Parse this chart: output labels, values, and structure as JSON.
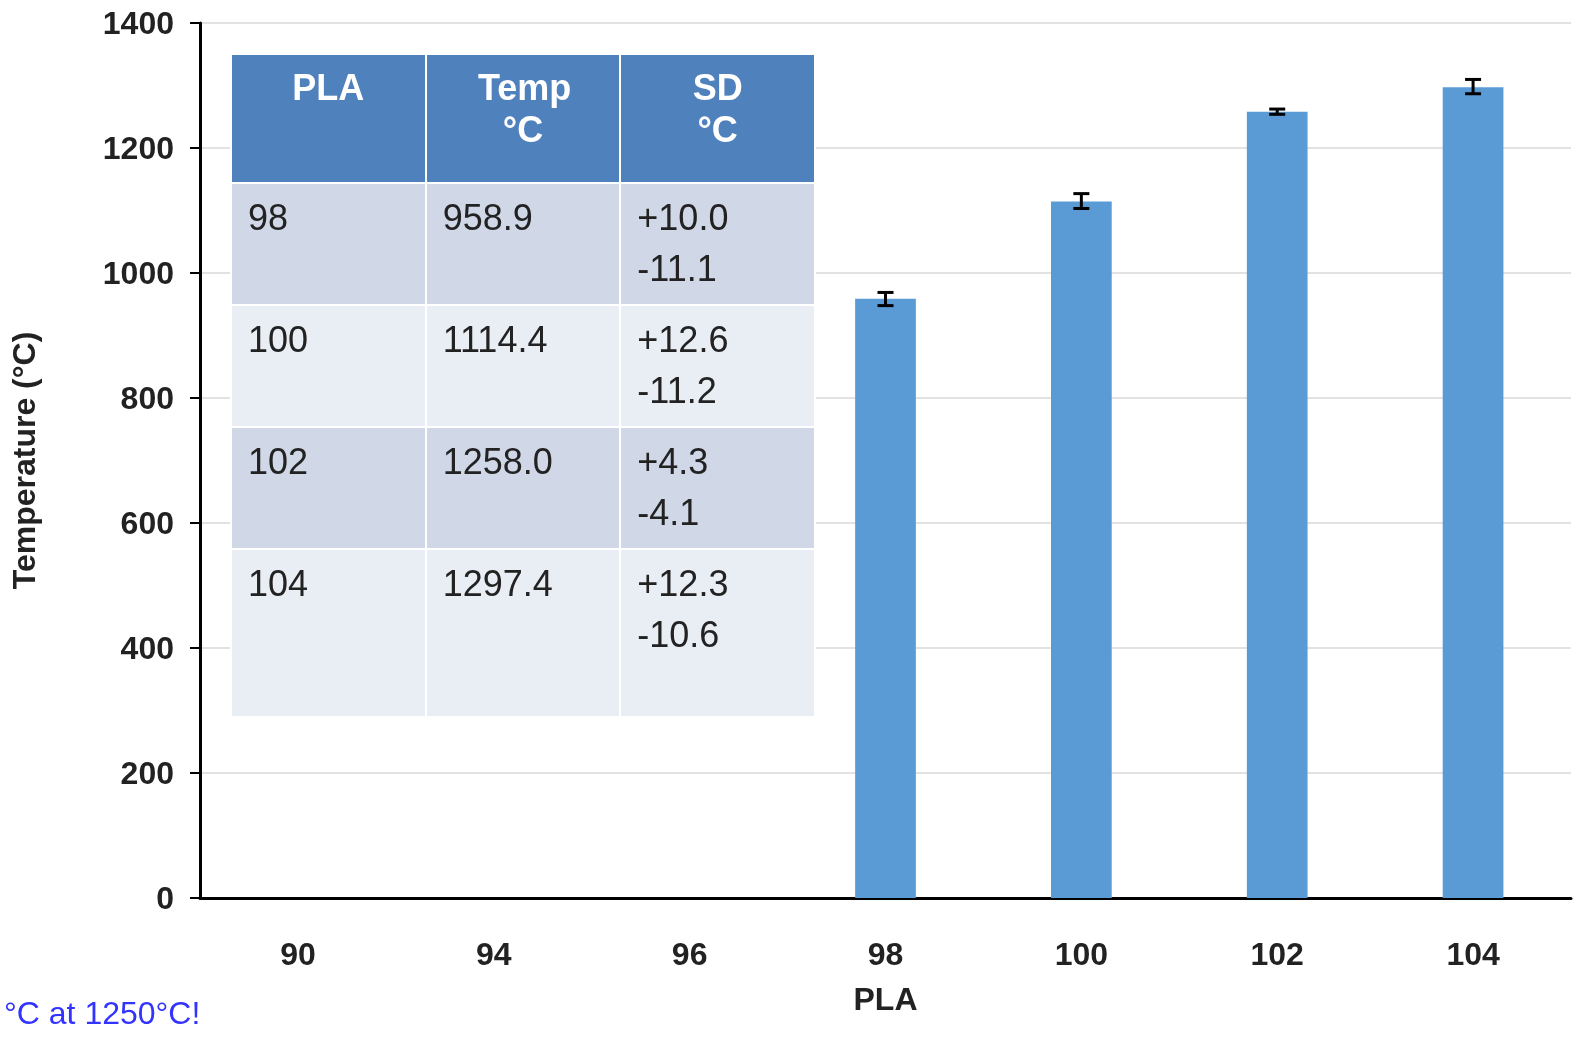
{
  "chart_data": {
    "type": "bar",
    "xlabel": "PLA",
    "ylabel": "Temperature (°C)",
    "categories": [
      "90",
      "94",
      "96",
      "98",
      "100",
      "102",
      "104"
    ],
    "values": [
      null,
      null,
      null,
      958.9,
      1114.4,
      1258.0,
      1297.4
    ],
    "errors": [
      null,
      null,
      null,
      [
        947.8,
        968.9
      ],
      [
        1103.2,
        1127.0
      ],
      [
        1253.9,
        1262.3
      ],
      [
        1286.8,
        1309.7
      ]
    ],
    "color": "#5b9bd5",
    "ylim": [
      0,
      1400
    ],
    "yticks": [
      0,
      200,
      400,
      600,
      800,
      1000,
      1200,
      1400
    ],
    "grid": "y",
    "annotations": [
      "Temp °C",
      "SD °C",
      "98",
      "958.9",
      "+10.0",
      "-11.1",
      "100",
      "1114.4",
      "+12.6",
      "-11.2",
      "102",
      "1258.0",
      "+4.3",
      "-4.1",
      "104",
      "1297.4",
      "+12.3",
      "-10.6",
      "°C at 1250°C!"
    ]
  }
}
